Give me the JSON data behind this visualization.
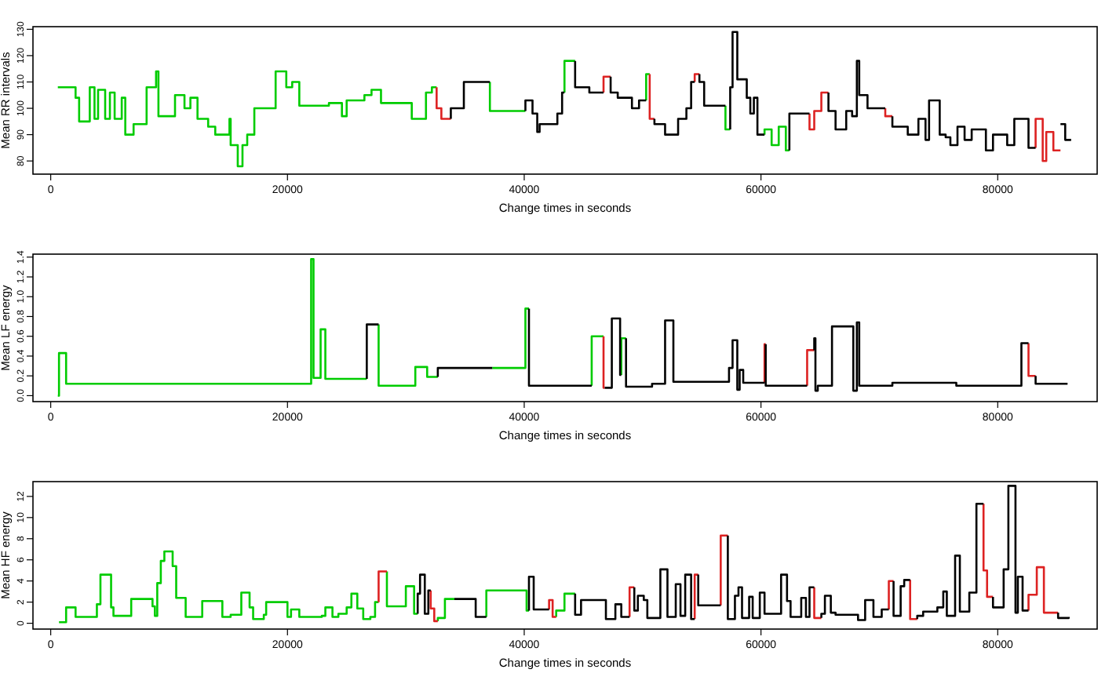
{
  "chart_data": [
    {
      "type": "step",
      "xlabel": "Change times in seconds",
      "ylabel": "Mean RR intervals",
      "xlim": [
        -1500,
        88400
      ],
      "ylim": [
        75,
        131
      ],
      "xticks": [
        0,
        20000,
        40000,
        60000,
        80000
      ],
      "yticks": [
        80,
        90,
        100,
        110,
        120,
        130
      ],
      "series": [
        {
          "color": "#00cc00",
          "x": [
            600,
            2100,
            2400,
            3300,
            3700,
            4000,
            4600,
            5000,
            5400,
            6000,
            6300,
            7000,
            8100,
            8900,
            9100,
            10500,
            11300,
            11800,
            12400,
            13300,
            13900,
            15100,
            15200,
            15800,
            16200,
            16600,
            17200,
            19000,
            19900,
            20400,
            21000,
            23500,
            24600,
            25000,
            26500,
            27100,
            27900,
            30500,
            31700,
            32200,
            32600,
            null,
            37100,
            37100,
            40100,
            null,
            43400,
            43400,
            44300,
            null,
            50300,
            50300,
            50600,
            null,
            57000,
            57000,
            57400,
            null,
            60300,
            60300,
            60900,
            61500,
            62100,
            62400
          ],
          "values": [
            108,
            104,
            95,
            108,
            96,
            107,
            96,
            106,
            96,
            104,
            90,
            94,
            108,
            114,
            97,
            105,
            100,
            104,
            96,
            93,
            90,
            96,
            86,
            78,
            86,
            90,
            100,
            114,
            108,
            110,
            101,
            102,
            97,
            103,
            105,
            107,
            102,
            96,
            106,
            108,
            108,
            null,
            110,
            99,
            99,
            null,
            106,
            118,
            118,
            null,
            103,
            113,
            113,
            null,
            101,
            92,
            92,
            null,
            90,
            92,
            86,
            93,
            84,
            84
          ]
        },
        {
          "color": "#dd2222",
          "x": [
            32600,
            32600,
            33000,
            33800,
            null,
            46700,
            46700,
            47300,
            null,
            50600,
            50600,
            51000,
            null,
            54400,
            54400,
            54800,
            null,
            64100,
            64100,
            64500,
            65100,
            65700,
            null,
            70500,
            70500,
            71100,
            null,
            83200,
            83200,
            83800,
            84100,
            84700,
            85300
          ],
          "values": [
            108,
            100,
            96,
            96,
            null,
            106,
            112,
            112,
            null,
            113,
            96,
            96,
            null,
            110,
            113,
            113,
            null,
            98,
            92,
            99,
            106,
            106,
            null,
            100,
            97,
            97,
            null,
            85,
            96,
            80,
            91,
            84,
            84
          ]
        },
        {
          "color": "#000000",
          "x": [
            33800,
            33800,
            34900,
            37100,
            null,
            40100,
            40100,
            40700,
            41100,
            41300,
            42800,
            43200,
            43400,
            null,
            44300,
            44300,
            45500,
            46700,
            null,
            47300,
            47300,
            47900,
            49100,
            49700,
            50300,
            null,
            51000,
            51000,
            51900,
            53000,
            53700,
            54100,
            54400,
            null,
            54800,
            54800,
            55200,
            57000,
            null,
            57400,
            57400,
            57600,
            58000,
            58800,
            59100,
            59400,
            59700,
            60300,
            null,
            62400,
            62400,
            64100,
            null,
            65700,
            65700,
            66300,
            67200,
            67700,
            68100,
            68300,
            69000,
            70500,
            null,
            71100,
            71100,
            72400,
            73300,
            73900,
            74200,
            75100,
            75600,
            76000,
            76600,
            77200,
            77800,
            79000,
            79600,
            80800,
            81400,
            82600,
            83200,
            null,
            85300,
            85700,
            86200
          ],
          "values": [
            96,
            100,
            110,
            110,
            null,
            99,
            103,
            98,
            91,
            94,
            98,
            106,
            106,
            null,
            118,
            108,
            106,
            106,
            null,
            112,
            106,
            104,
            100,
            103,
            103,
            null,
            96,
            94,
            90,
            96,
            100,
            110,
            110,
            null,
            113,
            110,
            101,
            101,
            null,
            92,
            108,
            129,
            111,
            104,
            98,
            104,
            90,
            90,
            null,
            84,
            98,
            98,
            null,
            106,
            99,
            92,
            99,
            97,
            118,
            105,
            100,
            100,
            null,
            97,
            93,
            90,
            96,
            88,
            103,
            90,
            89,
            86,
            93,
            88,
            92,
            84,
            90,
            86,
            96,
            85,
            85,
            null,
            94,
            88,
            88
          ]
        }
      ]
    },
    {
      "type": "step",
      "xlabel": "Change times in seconds",
      "ylabel": "Mean LF energy",
      "xlim": [
        -1500,
        88400
      ],
      "ylim": [
        -0.06,
        1.43
      ],
      "xticks": [
        0,
        20000,
        40000,
        60000,
        80000
      ],
      "yticks": [
        {
          "value": 0,
          "label": "0.0"
        },
        0.2,
        0.4,
        0.6,
        0.8,
        {
          "value": 1,
          "label": "1.0"
        },
        1.2,
        1.4
      ],
      "series": [
        {
          "color": "#00cc00",
          "x": [
            600,
            700,
            1300,
            22000,
            22200,
            22800,
            23200,
            26700,
            null,
            27700,
            27700,
            30800,
            31800,
            32700,
            null,
            37300,
            40100,
            40400,
            null,
            45700,
            45700,
            46700,
            null,
            48200,
            48200,
            48600
          ],
          "values": [
            0,
            0.43,
            0.12,
            1.38,
            0.18,
            0.67,
            0.17,
            0.17,
            null,
            0.72,
            0.1,
            0.29,
            0.19,
            0.19,
            null,
            0.28,
            0.88,
            0.88,
            null,
            0.1,
            0.6,
            0.6,
            null,
            0.21,
            0.58,
            0.58
          ]
        },
        {
          "color": "#dd2222",
          "x": [
            46700,
            46700,
            46800,
            null,
            60300,
            60300,
            60400,
            null,
            63900,
            63900,
            64500,
            null,
            82600,
            82600,
            83200
          ],
          "values": [
            0.6,
            0.08,
            0.08,
            null,
            0.13,
            0.52,
            0.52,
            null,
            0.1,
            0.46,
            0.46,
            null,
            0.53,
            0.2,
            0.2
          ]
        },
        {
          "color": "#000000",
          "x": [
            26700,
            26700,
            27700,
            null,
            32700,
            32700,
            37300,
            null,
            40400,
            40400,
            45700,
            null,
            46800,
            47400,
            48100,
            48200,
            null,
            48600,
            48600,
            50800,
            51900,
            52600,
            57300,
            57600,
            58000,
            58200,
            58500,
            60300,
            null,
            60400,
            60400,
            63900,
            null,
            64500,
            64500,
            64600,
            64800,
            66000,
            67800,
            68100,
            68300,
            71100,
            76500,
            82000,
            82600,
            null,
            83200,
            83200,
            85900
          ],
          "values": [
            0.17,
            0.72,
            0.72,
            null,
            0.19,
            0.28,
            0.28,
            null,
            0.88,
            0.1,
            0.1,
            null,
            0.08,
            0.78,
            0.21,
            0.21,
            null,
            0.58,
            0.09,
            0.12,
            0.76,
            0.14,
            0.28,
            0.56,
            0.06,
            0.26,
            0.13,
            0.13,
            null,
            0.52,
            0.1,
            0.1,
            null,
            0.46,
            0.58,
            0.05,
            0.1,
            0.7,
            0.05,
            0.74,
            0.1,
            0.13,
            0.1,
            0.53,
            0.53,
            null,
            0.2,
            0.12,
            0.12
          ]
        }
      ]
    },
    {
      "type": "step",
      "xlabel": "Change times in seconds",
      "ylabel": "Mean HF energy",
      "xlim": [
        -1500,
        88400
      ],
      "ylim": [
        -0.55,
        13.4
      ],
      "xticks": [
        0,
        20000,
        40000,
        60000,
        80000
      ],
      "yticks": [
        0,
        2,
        4,
        6,
        8,
        10,
        12
      ],
      "series": [
        {
          "color": "#00cc00",
          "x": [
            700,
            1300,
            2100,
            3900,
            4200,
            5100,
            5300,
            6800,
            8600,
            8800,
            9000,
            9300,
            9600,
            10300,
            10600,
            11400,
            12800,
            14500,
            15200,
            16100,
            16800,
            17100,
            18000,
            18200,
            20000,
            20300,
            21000,
            22900,
            23200,
            23800,
            24300,
            25000,
            25400,
            25900,
            26400,
            27000,
            27400,
            27700,
            null,
            28400,
            28400,
            30000,
            30700,
            31000,
            null,
            32700,
            32700,
            33300,
            34100,
            null,
            36800,
            36800,
            40200,
            40400,
            null,
            42700,
            42700,
            43400,
            44300
          ],
          "values": [
            0.1,
            1.5,
            0.6,
            1.8,
            4.6,
            1.5,
            0.7,
            2.3,
            1.6,
            0.7,
            3.8,
            5.9,
            6.8,
            5.4,
            2.4,
            0.6,
            2.1,
            0.6,
            0.8,
            2.9,
            1.5,
            0.4,
            0.8,
            2,
            0.6,
            1.3,
            0.6,
            0.7,
            1.5,
            0.6,
            0.9,
            1.5,
            2.8,
            1.4,
            0.4,
            0.6,
            2,
            2,
            null,
            4.9,
            1.6,
            3.5,
            0.9,
            0.9,
            null,
            0.2,
            0.5,
            2.3,
            2.3,
            null,
            0.6,
            3.1,
            1.2,
            1.2,
            null,
            0.6,
            1.2,
            2.8,
            2.8
          ]
        },
        {
          "color": "#dd2222",
          "x": [
            27700,
            27700,
            28400,
            null,
            32100,
            32100,
            32400,
            32700,
            null,
            42100,
            42100,
            42400,
            42700,
            null,
            48900,
            48900,
            49300,
            null,
            54400,
            54400,
            54700,
            null,
            56600,
            56600,
            57200,
            null,
            64500,
            64500,
            65100,
            null,
            70800,
            70800,
            71200,
            null,
            72600,
            72600,
            73200,
            null,
            78800,
            78800,
            79100,
            79600,
            null,
            82600,
            82600,
            83300,
            83900,
            85100
          ],
          "values": [
            2,
            4.9,
            4.9,
            null,
            3.1,
            1.4,
            0.2,
            0.2,
            null,
            1.3,
            2.2,
            0.6,
            0.6,
            null,
            0.6,
            3.4,
            3.4,
            null,
            0.4,
            4.6,
            4.6,
            null,
            1.7,
            8.3,
            8.3,
            null,
            3.4,
            0.5,
            0.5,
            null,
            1.3,
            4,
            4,
            null,
            4.1,
            0.4,
            0.4,
            null,
            11.3,
            5,
            2.5,
            2.5,
            null,
            1.2,
            2.7,
            5.3,
            1,
            1
          ]
        },
        {
          "color": "#000000",
          "x": [
            31000,
            31000,
            31200,
            31600,
            31900,
            32100,
            null,
            34100,
            35900,
            36800,
            null,
            40400,
            40400,
            40800,
            42100,
            null,
            44300,
            44300,
            44800,
            46900,
            47700,
            48200,
            48900,
            null,
            49300,
            49300,
            49600,
            50100,
            50400,
            51500,
            52100,
            52800,
            53200,
            53600,
            54100,
            54400,
            null,
            54700,
            54700,
            56600,
            null,
            57200,
            57200,
            57800,
            58100,
            58400,
            59000,
            59300,
            59900,
            60300,
            61700,
            62200,
            62500,
            63400,
            63800,
            64100,
            64500,
            null,
            65100,
            65100,
            65400,
            65900,
            66300,
            67700,
            68200,
            68800,
            69500,
            70200,
            70800,
            null,
            71200,
            71200,
            71800,
            72100,
            72600,
            null,
            73200,
            73200,
            73700,
            74900,
            75400,
            75700,
            76400,
            76800,
            77600,
            78200,
            78800,
            null,
            79600,
            79600,
            80500,
            80900,
            81500,
            81700,
            82100,
            82600,
            null,
            85100,
            85100,
            86000
          ],
          "values": [
            0.9,
            2.8,
            4.6,
            0.9,
            3.1,
            3.1,
            null,
            2.3,
            0.6,
            0.6,
            null,
            1.2,
            4.4,
            1.3,
            1.3,
            null,
            2.8,
            0.8,
            2.2,
            0.4,
            1.8,
            0.6,
            0.6,
            null,
            3.4,
            1.2,
            2.6,
            2.2,
            0.5,
            5.1,
            0.6,
            3.7,
            0.7,
            4.6,
            0.4,
            0.4,
            null,
            4.6,
            1.7,
            1.7,
            null,
            8.3,
            0.4,
            2.6,
            3.4,
            0.5,
            2.5,
            0.5,
            2.9,
            0.9,
            4.6,
            2.1,
            0.6,
            2.4,
            0.6,
            3.4,
            3.4,
            null,
            0.5,
            0.9,
            2.6,
            1,
            0.8,
            0.8,
            0.3,
            2.2,
            0.6,
            1.3,
            1.3,
            null,
            4,
            0.7,
            3.5,
            4.1,
            4.1,
            null,
            0.4,
            0.7,
            1.1,
            1.5,
            3,
            0.7,
            6.4,
            1.1,
            2.9,
            11.3,
            11.3,
            null,
            2.5,
            1.5,
            5.1,
            13,
            1,
            4.4,
            1.2,
            1.2,
            null,
            1,
            0.5,
            0.6
          ]
        }
      ]
    }
  ]
}
